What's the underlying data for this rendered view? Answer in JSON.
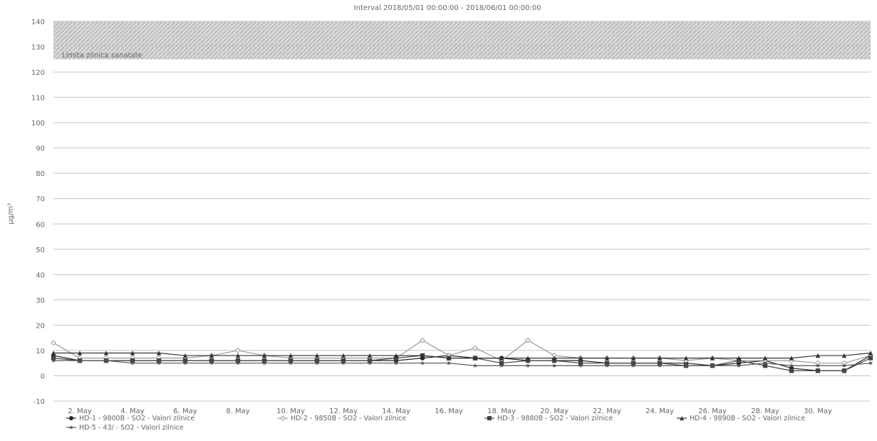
{
  "chart_data": {
    "type": "line",
    "subtitle": "Interval 2018/05/01 00:00:00 - 2018/06/01 00:00:00",
    "ylabel": "µg/m³",
    "xlabel": "",
    "ylim": [
      -10,
      140
    ],
    "y_ticks": [
      -10,
      0,
      10,
      20,
      30,
      40,
      50,
      60,
      70,
      80,
      90,
      100,
      110,
      120,
      130,
      140
    ],
    "grid": true,
    "legend_position": "bottom",
    "x_tick_labels": [
      "2. May",
      "4. May",
      "6. May",
      "8. May",
      "10. May",
      "12. May",
      "14. May",
      "16. May",
      "18. May",
      "20. May",
      "22. May",
      "24. May",
      "26. May",
      "28. May",
      "30. May"
    ],
    "x_days": [
      1,
      2,
      3,
      4,
      5,
      6,
      7,
      8,
      9,
      10,
      11,
      12,
      13,
      14,
      15,
      16,
      17,
      18,
      19,
      20,
      21,
      22,
      23,
      24,
      25,
      26,
      27,
      28,
      29,
      30,
      31,
      32
    ],
    "threshold_band": {
      "label": "Limita zilnica sanatate",
      "from": 125,
      "to": 140,
      "color": "#c8c8c8"
    },
    "series": [
      {
        "name": "HD-1 - 9800B - SO2 - Valori zilnice",
        "marker": "circle",
        "color": "#222222",
        "values": [
          8,
          6,
          6,
          6,
          6,
          6,
          6,
          6,
          6,
          6,
          6,
          6,
          6,
          6,
          7,
          8,
          7,
          7,
          6,
          6,
          6,
          5,
          5,
          5,
          5,
          4,
          5,
          6,
          3,
          2,
          2,
          8
        ]
      },
      {
        "name": "HD-2 - 9850B - SO2 - Valori zilnice",
        "marker": "diamond",
        "color": "#999999",
        "values": [
          13,
          7,
          7,
          7,
          7,
          7,
          8,
          10,
          8,
          7,
          7,
          7,
          7,
          7,
          14,
          8,
          11,
          6,
          14,
          8,
          7,
          7,
          7,
          7,
          6,
          7,
          6,
          6,
          6,
          5,
          5,
          8
        ]
      },
      {
        "name": "HD-3 - 9880B - SO2 - Valori zilnice",
        "marker": "square",
        "color": "#444444",
        "values": [
          7,
          6,
          6,
          6,
          6,
          6,
          6,
          6,
          6,
          6,
          6,
          6,
          6,
          7,
          8,
          7,
          7,
          5,
          6,
          6,
          5,
          5,
          5,
          5,
          4,
          4,
          6,
          4,
          2,
          2,
          2,
          7
        ]
      },
      {
        "name": "HD-4 - 9890B - SO2 - Valori zilnice",
        "marker": "triangle",
        "color": "#333333",
        "values": [
          9,
          9,
          9,
          9,
          9,
          8,
          8,
          8,
          8,
          8,
          8,
          8,
          8,
          8,
          8,
          7,
          7,
          7,
          7,
          7,
          7,
          7,
          7,
          7,
          7,
          7,
          7,
          7,
          7,
          8,
          8,
          9
        ]
      },
      {
        "name": "HD-5 - 43/ - SO2 - Valori zilnice",
        "marker": "star",
        "color": "#555555",
        "values": [
          6,
          6,
          6,
          5,
          5,
          5,
          5,
          5,
          5,
          5,
          5,
          5,
          5,
          5,
          5,
          5,
          4,
          4,
          4,
          4,
          4,
          4,
          4,
          4,
          4,
          4,
          4,
          5,
          4,
          4,
          4,
          5
        ]
      }
    ]
  }
}
